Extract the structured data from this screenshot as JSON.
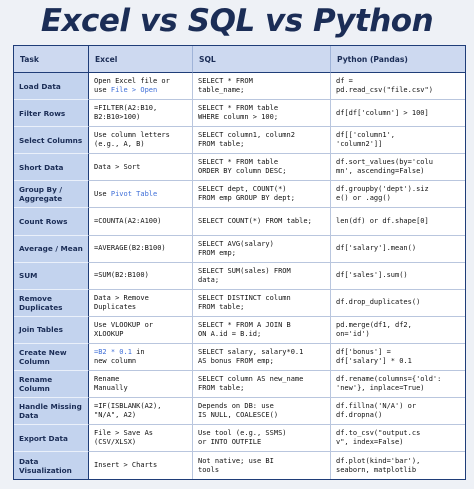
{
  "title": "Excel vs SQL vs Python",
  "headers": [
    "Task",
    "Excel",
    "SQL",
    "Python (Pandas)"
  ],
  "rows": [
    {
      "task": "Load Data",
      "excel": "Open Excel file or\nuse File > Open",
      "sql": "SELECT * FROM\ntable_name;",
      "python": "df =\npd.read_csv(\"file.csv\")"
    },
    {
      "task": "Filter Rows",
      "excel": "=FILTER(A2:B10,\nB2:B10>100)",
      "sql": "SELECT * FROM table\nWHERE column > 100;",
      "python": "df[df['column'] > 100]"
    },
    {
      "task": "Select Columns",
      "excel": "Use column letters\n(e.g., A, B)",
      "sql": "SELECT column1, column2\nFROM table;",
      "python": "df[['column1',\n'column2']]"
    },
    {
      "task": "Short Data",
      "excel": "Data > Sort",
      "sql": "SELECT * FROM table\nORDER BY column DESC;",
      "python": "df.sort_values(by='colu\nmn', ascending=False)"
    },
    {
      "task": "Group By / Aggregate",
      "excel": "Use Pivot Table",
      "sql": "SELECT dept, COUNT(*)\nFROM emp GROUP BY dept;",
      "python": "df.groupby('dept').siz\ne() or .agg()"
    },
    {
      "task": "Count Rows",
      "excel": "=COUNTA(A2:A100)",
      "sql": "SELECT COUNT(*) FROM table;",
      "python": "len(df) or df.shape[0]"
    },
    {
      "task": "Average / Mean",
      "excel": "=AVERAGE(B2:B100)",
      "sql": "SELECT AVG(salary)\nFROM emp;",
      "python": "df['salary'].mean()"
    },
    {
      "task": "SUM",
      "excel": "=SUM(B2:B100)",
      "sql": "SELECT SUM(sales) FROM\ndata;",
      "python": "df['sales'].sum()"
    },
    {
      "task": "Remove Duplicates",
      "excel": "Data > Remove\nDuplicates",
      "sql": "SELECT DISTINCT column\nFROM table;",
      "python": "df.drop_duplicates()"
    },
    {
      "task": "Join Tables",
      "excel": "Use VLOOKUP or\nXLOOKUP",
      "sql": "SELECT * FROM A JOIN B\nON A.id = B.id;",
      "python": "pd.merge(df1, df2,\non='id')"
    },
    {
      "task": "Create New Column",
      "excel": "=B2 * 0.1 in\nnew column",
      "sql": "SELECT salary, salary*0.1\nAS bonus FROM emp;",
      "python": "df['bonus'] =\ndf['salary'] * 0.1"
    },
    {
      "task": "Rename Column",
      "excel": "Rename\nManually",
      "sql": "SELECT column AS new_name\nFROM table;",
      "python": "df.rename(columns={'old':\n'new'}, inplace=True)"
    },
    {
      "task": "Handle Missing Data",
      "excel": "=IF(ISBLANK(A2),\n\"N/A\", A2)",
      "sql": "Depends on DB: use\nIS NULL, COALESCE()",
      "python": "df.fillna('N/A') or\ndf.dropna()"
    },
    {
      "task": "Export Data",
      "excel": "File > Save As\n(CSV/XLSX)",
      "sql": "Use tool (e.g., SSMS)\nor INTO OUTFILE",
      "python": "df.to_csv(\"output.cs\nv\", index=False)"
    },
    {
      "task": "Data Visualization",
      "excel": "Insert > Charts",
      "sql": "Not native; use BI\ntools",
      "python": "df.plot(kind='bar'),\nseaborn, matplotlib"
    }
  ],
  "highlights": {
    "load_excel_menu": "File > Open",
    "groupby_excel_tool": "Pivot Table",
    "newcol_excel_formula": "=B2 * 0.1",
    "highlight_color": "#3f6fd8"
  },
  "colors": {
    "title": "#1b2d56",
    "header_bg": "#cdd9f0",
    "task_bg": "#c3d3ee",
    "border": "#1f3d78",
    "page_bg": "#eef1f6"
  }
}
